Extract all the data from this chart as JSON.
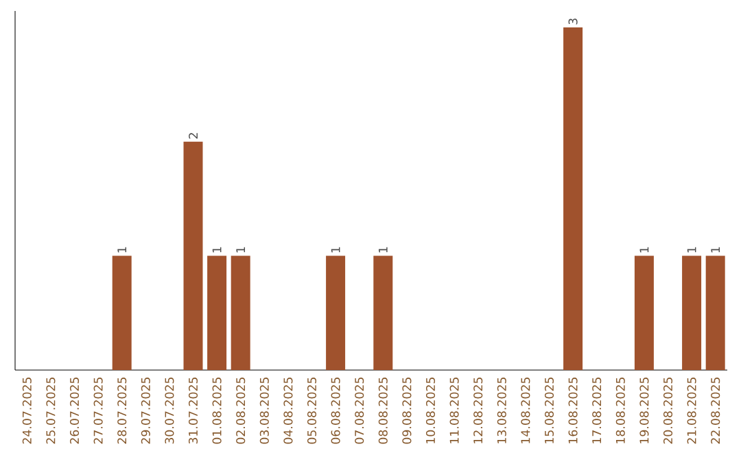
{
  "chart_data": {
    "type": "bar",
    "categories": [
      "24.07.2025",
      "25.07.2025",
      "26.07.2025",
      "27.07.2025",
      "28.07.2025",
      "29.07.2025",
      "30.07.2025",
      "31.07.2025",
      "01.08.2025",
      "02.08.2025",
      "03.08.2025",
      "04.08.2025",
      "05.08.2025",
      "06.08.2025",
      "07.08.2025",
      "08.08.2025",
      "09.08.2025",
      "10.08.2025",
      "11.08.2025",
      "12.08.2025",
      "13.08.2025",
      "14.08.2025",
      "15.08.2025",
      "16.08.2025",
      "17.08.2025",
      "18.08.2025",
      "19.08.2025",
      "20.08.2025",
      "21.08.2025",
      "22.08.2025"
    ],
    "values": [
      0,
      0,
      0,
      0,
      1,
      0,
      0,
      2,
      1,
      1,
      0,
      0,
      0,
      1,
      0,
      1,
      0,
      0,
      0,
      0,
      0,
      0,
      0,
      3,
      0,
      0,
      1,
      0,
      1,
      1
    ],
    "value_labels": [
      null,
      null,
      null,
      null,
      "1",
      null,
      null,
      "2",
      "1",
      "1",
      null,
      null,
      null,
      "1",
      null,
      "1",
      null,
      null,
      null,
      null,
      null,
      null,
      null,
      "3",
      null,
      null,
      "1",
      null,
      "1",
      "1"
    ],
    "color": "#a0522d"
  }
}
